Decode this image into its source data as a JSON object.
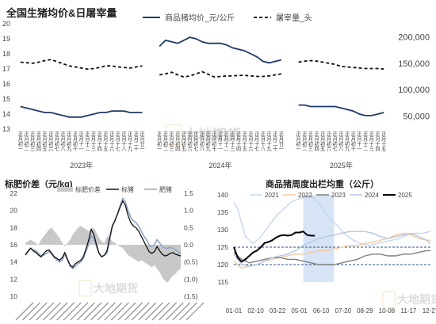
{
  "chart_data": [
    {
      "type": "line",
      "title": "全国生猪均价&日屠宰量",
      "legend_position": "top",
      "left_axis": {
        "ylim": [
          13,
          20
        ],
        "ticks": [
          13,
          14,
          15,
          16,
          17,
          18,
          19,
          20
        ]
      },
      "right_axis": {
        "ylim": [
          25000,
          225000
        ],
        "ticks": [
          50000,
          100000,
          150000,
          200000
        ]
      },
      "x_groups": [
        {
          "year_label": "2023年",
          "month_labels": [
            "正月初一",
            "正月初二",
            "正月初三",
            "正月初四",
            "正月初五",
            "正月初六",
            "正月初七",
            "正月初八",
            "正月初九",
            "正月初十",
            "正月十一",
            "正月十二",
            "正月十三",
            "正月十四",
            "正月十五",
            "正月十六",
            "正月十七",
            "正月十八",
            "正月十九",
            "正月二十",
            "正月廿一"
          ]
        },
        {
          "year_label": "2024年",
          "month_labels": [
            "正月初一",
            "正月初二",
            "正月初三",
            "正月初四",
            "正月初五",
            "正月初六",
            "正月初七",
            "正月初八",
            "正月初九",
            "正月初十",
            "正月十一",
            "正月十二",
            "正月十三",
            "正月十四",
            "正月十五",
            "正月十六",
            "正月十七",
            "正月十八",
            "正月十九",
            "正月二十",
            "正月廿一"
          ]
        },
        {
          "year_label": "2025年",
          "month_labels": [
            "正月初一",
            "正月初二",
            "正月初三",
            "正月初四",
            "正月初五",
            "正月初六",
            "正月初七",
            "正月初八",
            "正月初九",
            "正月初十",
            "正月十一",
            "正月十二",
            "正月十三",
            "正月十四",
            "正月十五"
          ]
        }
      ],
      "series": [
        {
          "name": "商品猪均价_元/公斤",
          "axis": "left",
          "style": "solid",
          "color": "#1f3a68",
          "groups": [
            [
              14.5,
              14.4,
              14.3,
              14.2,
              14.1,
              14.1,
              14.0,
              13.9,
              13.8,
              13.8,
              13.8,
              13.9,
              14.0,
              14.1,
              14.1,
              14.2,
              14.2,
              14.2,
              14.1,
              14.1,
              14.1
            ],
            [
              18.5,
              18.9,
              18.8,
              18.7,
              18.9,
              19.1,
              19.0,
              18.8,
              18.7,
              18.7,
              18.7,
              18.6,
              18.4,
              18.3,
              18.2,
              18.0,
              17.8,
              17.5,
              17.4,
              17.5,
              17.6
            ],
            [
              14.6,
              14.6,
              14.5,
              14.5,
              14.5,
              14.5,
              14.5,
              14.4,
              14.3,
              14.2,
              14.0,
              13.9,
              13.9,
              14.0,
              14.1
            ]
          ]
        },
        {
          "name": "屠宰量_头",
          "axis": "right",
          "style": "dashed",
          "color": "#111111",
          "groups": [
            [
              152000,
              151000,
              150000,
              152000,
              155000,
              157000,
              153000,
              149000,
              145000,
              143000,
              141000,
              139000,
              140000,
              142000,
              145000,
              145000,
              143000,
              142000,
              141000,
              143000,
              145000
            ],
            [
              128000,
              130000,
              133000,
              128000,
              124000,
              126000,
              130000,
              134000,
              129000,
              124000,
              125000,
              126000,
              126000,
              127000,
              127000,
              126000,
              125000,
              125000,
              126000,
              128000,
              130000
            ],
            [
              152000,
              154000,
              155000,
              154000,
              152000,
              150000,
              148000,
              144000,
              143000,
              142000,
              141000,
              140000,
              140000,
              140000,
              139000
            ]
          ]
        }
      ]
    },
    {
      "type": "line",
      "title": "标肥价差（元/kg)",
      "legend_position": "top",
      "left_axis": {
        "ylim": [
          10,
          22
        ],
        "ticks": [
          10,
          12,
          14,
          16,
          18,
          20,
          22
        ]
      },
      "right_axis": {
        "ylim": [
          -1.5,
          1.5
        ],
        "ticks": [
          1.5,
          1.0,
          0.5,
          0.0,
          -0.5,
          -1.0,
          -1.5
        ],
        "tick_labels": [
          "1.5",
          "1.0",
          "0.5",
          "0.0",
          "(0.5)",
          "(1.0)",
          "(1.5)"
        ]
      },
      "x_count": 60,
      "series": [
        {
          "name": "标肥价差",
          "axis": "right",
          "type": "area",
          "color": "#c8c8c8",
          "values": [
            0.05,
            0.1,
            0.15,
            0.1,
            0.05,
            0.0,
            0.15,
            0.25,
            0.35,
            0.45,
            0.5,
            0.4,
            0.3,
            0.2,
            0.05,
            -0.05,
            0.05,
            0.15,
            0.3,
            0.4,
            0.5,
            0.55,
            0.5,
            0.45,
            0.4,
            0.45,
            0.5,
            0.35,
            0.2,
            0.1,
            0.05,
            0.25,
            0.2,
            0.1,
            0.05,
            0.0,
            -0.05,
            -0.1,
            -0.2,
            -0.3,
            -0.35,
            -0.4,
            -0.45,
            -0.5,
            -0.45,
            -0.5,
            -0.55,
            -0.6,
            -0.65,
            -0.6,
            -0.7,
            -0.8,
            -0.95,
            -1.05,
            -1.1,
            -1.0,
            -0.9,
            -0.85,
            -0.75,
            -0.7
          ]
        },
        {
          "name": "标猪",
          "axis": "left",
          "color": "#111111",
          "values": [
            14.8,
            15.2,
            15.6,
            15.3,
            15.1,
            14.8,
            14.6,
            15.0,
            15.3,
            15.4,
            15.0,
            14.6,
            14.4,
            14.2,
            14.5,
            15.1,
            14.3,
            13.6,
            13.4,
            13.8,
            14.0,
            14.2,
            14.6,
            15.5,
            16.5,
            17.8,
            17.2,
            16.0,
            15.0,
            14.6,
            14.8,
            15.3,
            16.8,
            18.2,
            18.8,
            19.6,
            20.4,
            21.1,
            20.6,
            19.4,
            18.6,
            18.2,
            18.0,
            17.6,
            17.0,
            16.4,
            15.8,
            15.2,
            15.0,
            15.2,
            15.8,
            15.3,
            14.9,
            14.7,
            14.8,
            15.0,
            15.1,
            14.9,
            14.8,
            14.7
          ]
        },
        {
          "name": "肥猪",
          "axis": "left",
          "color": "#8fa6c8",
          "values": [
            14.9,
            15.3,
            15.6,
            15.4,
            15.3,
            15.0,
            14.7,
            14.8,
            15.0,
            15.2,
            14.9,
            14.5,
            14.2,
            14.0,
            14.2,
            14.9,
            14.2,
            13.5,
            13.2,
            13.5,
            13.8,
            14.0,
            14.4,
            15.2,
            16.0,
            17.0,
            16.8,
            15.8,
            15.0,
            14.6,
            14.8,
            15.0,
            16.6,
            18.0,
            18.8,
            19.6,
            20.6,
            21.4,
            21.0,
            20.0,
            19.2,
            18.8,
            18.6,
            18.2,
            17.6,
            17.0,
            16.6,
            16.0,
            15.8,
            16.0,
            16.6,
            16.2,
            15.8,
            15.6,
            15.6,
            15.7,
            15.6,
            15.4,
            15.2,
            15.0
          ]
        }
      ]
    },
    {
      "type": "line",
      "title": "商品猪周度出栏均重（公斤）",
      "legend_position": "top",
      "ylim": [
        115,
        140
      ],
      "y_ticks": [
        115,
        120,
        125,
        130,
        135,
        140
      ],
      "x_tick_labels": [
        "01-01",
        "02-10",
        "03-22",
        "05-01",
        "06-10",
        "07-20",
        "08-29",
        "10-08",
        "11-17",
        "12-27"
      ],
      "highlight_band": {
        "from_week": 19,
        "to_week": 27,
        "color": "#d6e4f5"
      },
      "reference_lines": [
        125,
        120
      ],
      "series": [
        {
          "name": "2021",
          "color": "#c6d6ef",
          "weeks": [
            1,
            2,
            4,
            6,
            8,
            10,
            12,
            14,
            16,
            18,
            20,
            22,
            24,
            26,
            28,
            30,
            32,
            34,
            36,
            38,
            40,
            42,
            44,
            46,
            48,
            50,
            52
          ],
          "values": [
            138,
            136,
            128,
            126,
            128,
            131,
            134,
            136,
            138,
            139,
            139.5,
            139,
            136,
            133,
            131,
            128.5,
            127,
            126,
            125.5,
            126,
            126.5,
            127,
            127.5,
            128.5,
            129,
            129,
            129.5
          ]
        },
        {
          "name": "2022",
          "color": "#f5c89a",
          "weeks": [
            1,
            3,
            5,
            7,
            9,
            11,
            13,
            15,
            17,
            19,
            21,
            23,
            25,
            27,
            29,
            31,
            33,
            35,
            37,
            39,
            41,
            43,
            45,
            47,
            49,
            51,
            52
          ],
          "values": [
            121,
            119,
            119.5,
            120,
            121,
            121.5,
            122,
            122.5,
            123,
            123,
            123.5,
            124,
            124,
            124.5,
            125,
            125.5,
            125.5,
            126,
            126.5,
            127,
            127.5,
            128.5,
            129,
            128.5,
            127.5,
            127,
            127
          ]
        },
        {
          "name": "2023",
          "color": "#7f7f7f",
          "weeks": [
            1,
            3,
            5,
            7,
            9,
            11,
            13,
            15,
            17,
            19,
            21,
            23,
            25,
            27,
            29,
            31,
            33,
            35,
            37,
            39,
            41,
            43,
            45,
            47,
            49,
            51,
            52
          ],
          "values": [
            123.5,
            121.5,
            120.5,
            121,
            121.5,
            122,
            122,
            121.5,
            121.5,
            121,
            120.5,
            120,
            120,
            120,
            120.5,
            121,
            121.5,
            122.5,
            123,
            123,
            122.5,
            122.5,
            123,
            123,
            123.5,
            124,
            124
          ]
        },
        {
          "name": "2024",
          "color": "#b4c7e7",
          "weeks": [
            1,
            3,
            5,
            7,
            9,
            11,
            13,
            15,
            17,
            19,
            21,
            23,
            25,
            27,
            29,
            31,
            33,
            35,
            37,
            39,
            41,
            43,
            45,
            47,
            49,
            51,
            52
          ],
          "values": [
            123,
            120,
            119.5,
            120,
            121,
            122,
            122.5,
            123,
            124,
            125.5,
            126.5,
            127.5,
            128,
            128.5,
            129,
            129.5,
            129.5,
            129.5,
            129,
            128,
            127.5,
            128,
            128.5,
            129,
            128,
            127,
            126
          ]
        },
        {
          "name": "2025",
          "color": "#000000",
          "weeks": [
            1,
            2,
            3,
            4,
            5,
            6,
            7,
            8,
            9,
            10,
            11,
            12,
            13,
            14,
            15,
            16,
            17,
            18,
            19,
            20,
            21,
            22
          ],
          "values": [
            125,
            122,
            120.8,
            121.5,
            122.5,
            123.5,
            124,
            125,
            126.2,
            126.5,
            127,
            127.8,
            128.3,
            128.5,
            128.3,
            128.5,
            129.2,
            129.2,
            129.5,
            128.5,
            128.3,
            128.3
          ]
        }
      ]
    }
  ],
  "watermark": "大地期货"
}
